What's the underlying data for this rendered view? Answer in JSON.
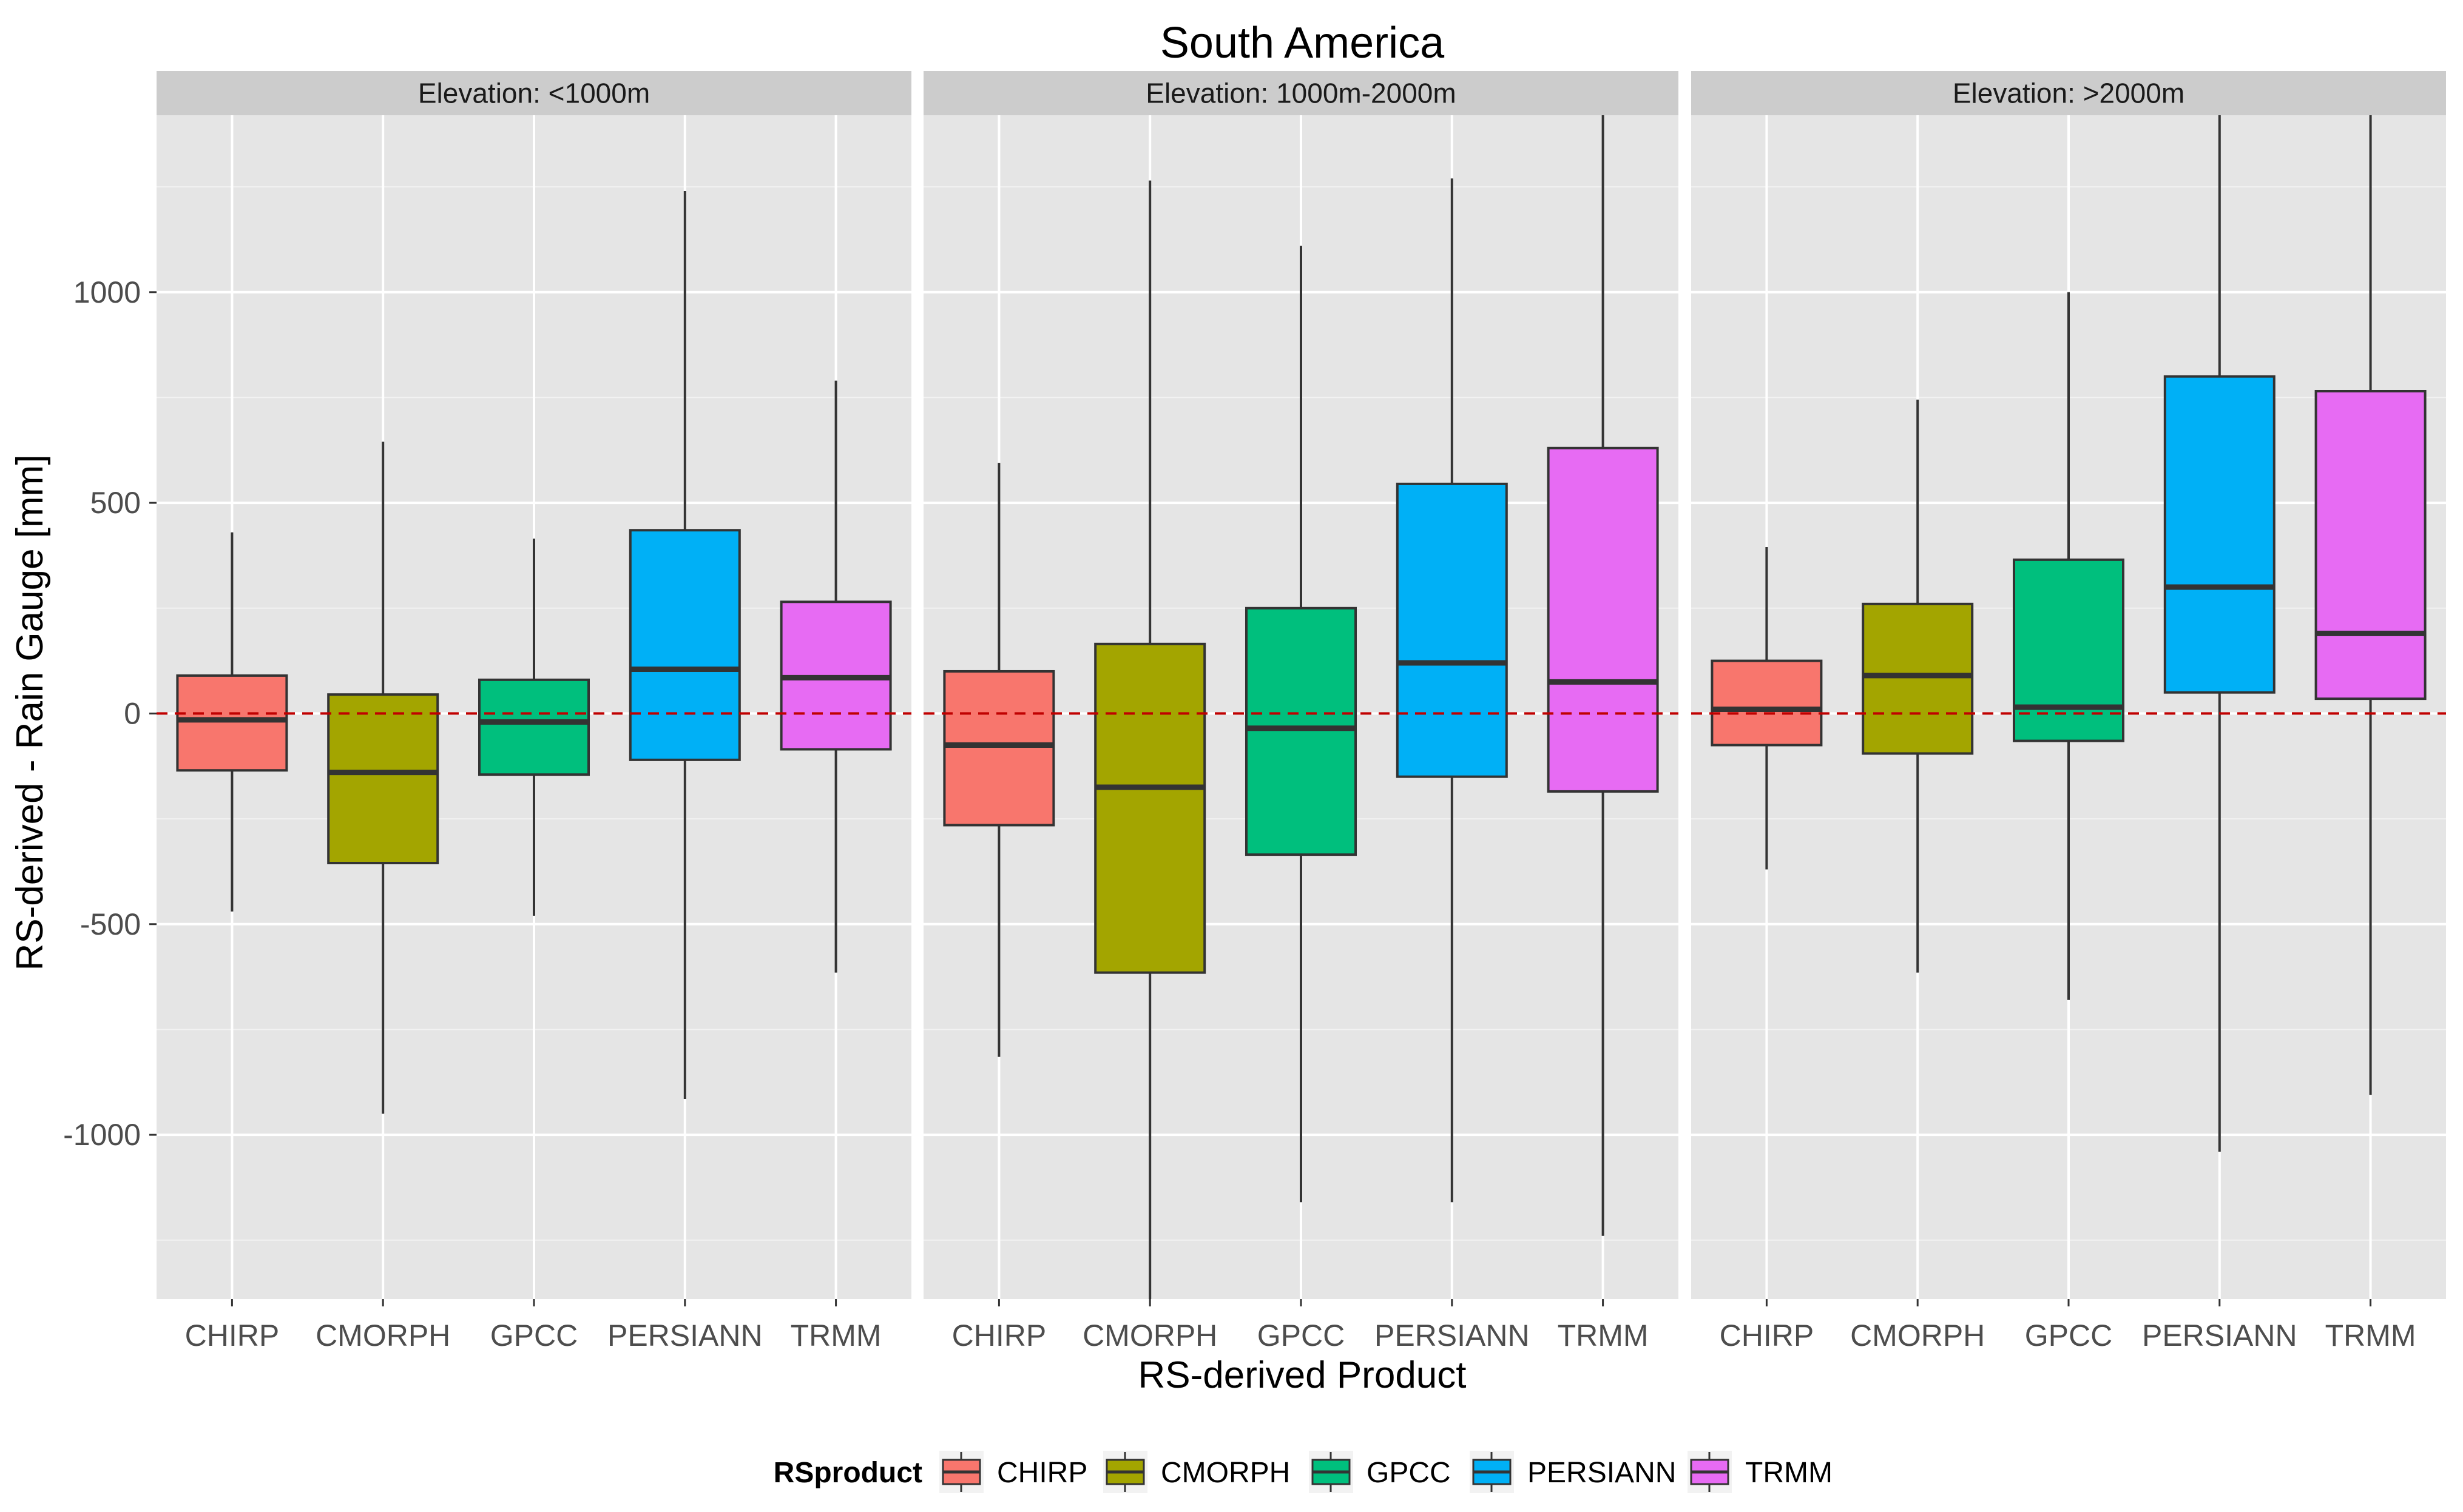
{
  "chart_data": {
    "type": "boxplot",
    "title": "South America",
    "xlabel": "RS-derived Product",
    "ylabel": "RS-derived - Rain Gauge [mm]",
    "ylim": [
      -1390,
      1420
    ],
    "yticks": [
      -1000,
      -500,
      0,
      500,
      1000
    ],
    "ytick_labels": [
      "-1000",
      "-500",
      "0",
      "500",
      "1000"
    ],
    "reference_line": 0,
    "categories": [
      "CHIRP",
      "CMORPH",
      "GPCC",
      "PERSIANN",
      "TRMM"
    ],
    "legend": {
      "title": "RSproduct",
      "position": "bottom",
      "entries": [
        "CHIRP",
        "CMORPH",
        "GPCC",
        "PERSIANN",
        "TRMM"
      ]
    },
    "colors": {
      "CHIRP": "#F8766D",
      "CMORPH": "#A3A500",
      "GPCC": "#00BF7D",
      "PERSIANN": "#00B0F6",
      "TRMM": "#E76BF3",
      "panel_bg": "#E5E5E5",
      "strip_bg": "#CCCCCC",
      "grid_major": "#FFFFFF",
      "grid_minor": "#F2F2F2",
      "reference_line": "#C00000",
      "tick_label": "#4D4D4D"
    },
    "panels": [
      {
        "strip": "Elevation: <1000m",
        "boxes": [
          {
            "product": "CHIRP",
            "lower_whisker": -470,
            "q1": -135,
            "median": -15,
            "q3": 90,
            "upper_whisker": 430
          },
          {
            "product": "CMORPH",
            "lower_whisker": -950,
            "q1": -355,
            "median": -140,
            "q3": 45,
            "upper_whisker": 645
          },
          {
            "product": "GPCC",
            "lower_whisker": -480,
            "q1": -145,
            "median": -20,
            "q3": 80,
            "upper_whisker": 415
          },
          {
            "product": "PERSIANN",
            "lower_whisker": -915,
            "q1": -110,
            "median": 105,
            "q3": 435,
            "upper_whisker": 1240
          },
          {
            "product": "TRMM",
            "lower_whisker": -615,
            "q1": -85,
            "median": 85,
            "q3": 265,
            "upper_whisker": 790
          }
        ]
      },
      {
        "strip": "Elevation: 1000m-2000m",
        "boxes": [
          {
            "product": "CHIRP",
            "lower_whisker": -815,
            "q1": -265,
            "median": -75,
            "q3": 100,
            "upper_whisker": 595
          },
          {
            "product": "CMORPH",
            "lower_whisker": -1390,
            "q1": -615,
            "median": -175,
            "q3": 165,
            "upper_whisker": 1265
          },
          {
            "product": "GPCC",
            "lower_whisker": -1160,
            "q1": -335,
            "median": -35,
            "q3": 250,
            "upper_whisker": 1110
          },
          {
            "product": "PERSIANN",
            "lower_whisker": -1160,
            "q1": -150,
            "median": 120,
            "q3": 545,
            "upper_whisker": 1270
          },
          {
            "product": "TRMM",
            "lower_whisker": -1240,
            "q1": -185,
            "median": 75,
            "q3": 630,
            "upper_whisker": 1420
          }
        ]
      },
      {
        "strip": "Elevation: >2000m",
        "boxes": [
          {
            "product": "CHIRP",
            "lower_whisker": -370,
            "q1": -75,
            "median": 10,
            "q3": 125,
            "upper_whisker": 395
          },
          {
            "product": "CMORPH",
            "lower_whisker": -615,
            "q1": -95,
            "median": 90,
            "q3": 260,
            "upper_whisker": 745
          },
          {
            "product": "GPCC",
            "lower_whisker": -680,
            "q1": -65,
            "median": 15,
            "q3": 365,
            "upper_whisker": 1000
          },
          {
            "product": "PERSIANN",
            "lower_whisker": -1040,
            "q1": 50,
            "median": 300,
            "q3": 800,
            "upper_whisker": 1420
          },
          {
            "product": "TRMM",
            "lower_whisker": -905,
            "q1": 35,
            "median": 190,
            "q3": 765,
            "upper_whisker": 1420
          }
        ]
      }
    ]
  }
}
